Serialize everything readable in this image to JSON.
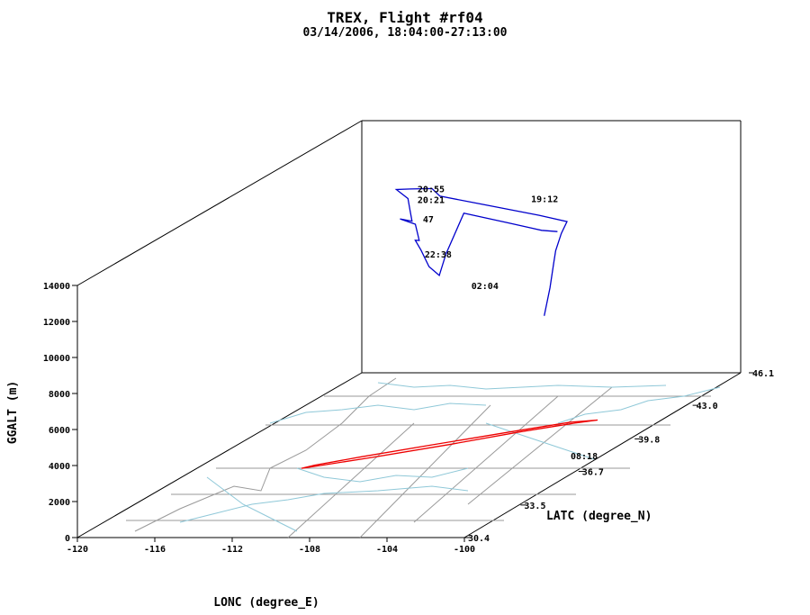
{
  "chart_data": {
    "type": "line",
    "title": "TREX, Flight #rf04",
    "subtitle": "03/14/2006, 18:04:00-27:13:00",
    "xlabel": "LONC (degree_E)",
    "ylabel": "LATC (degree_N)",
    "zlabel": "GGALT (m)",
    "xlim": [
      -120,
      -100
    ],
    "ylim": [
      30.4,
      46.1
    ],
    "zlim": [
      0,
      14000
    ],
    "x_ticks": [
      -120,
      -116,
      -112,
      -108,
      -104,
      -100
    ],
    "y_ticks": [
      30.4,
      33.5,
      36.7,
      39.8,
      43.0,
      46.1
    ],
    "z_ticks": [
      0,
      2000,
      4000,
      6000,
      8000,
      10000,
      12000,
      14000
    ],
    "series": [
      {
        "color": "#0000cc",
        "points": [
          [
            -102.8,
            37.8,
            8000
          ],
          [
            -102.6,
            37.9,
            9500
          ],
          [
            -102.5,
            38.0,
            10800
          ],
          [
            -102.4,
            38.0,
            11500
          ],
          [
            -102.2,
            38.1,
            12400
          ],
          [
            -102.0,
            38.2,
            13000
          ],
          [
            -104.0,
            38.8,
            13000
          ],
          [
            -108.0,
            40.0,
            12900
          ],
          [
            -111.0,
            40.8,
            12900
          ],
          [
            -111.6,
            41.0,
            13200
          ],
          [
            -113.0,
            41.3,
            13000
          ],
          [
            -114.0,
            41.6,
            12800
          ],
          [
            -113.4,
            41.6,
            12300
          ],
          [
            -113.2,
            41.5,
            11700
          ],
          [
            -113.1,
            41.5,
            11100
          ],
          [
            -114.0,
            41.8,
            11050
          ],
          [
            -113.3,
            41.9,
            10700
          ],
          [
            -113.1,
            41.9,
            9800
          ],
          [
            -113.4,
            42.0,
            9750
          ],
          [
            -113.1,
            42.0,
            9200
          ],
          [
            -112.5,
            41.8,
            8400
          ],
          [
            -111.5,
            41.3,
            8200
          ],
          [
            -110.5,
            40.6,
            9800
          ],
          [
            -109.2,
            40.2,
            12300
          ],
          [
            -106.0,
            39.2,
            12350
          ],
          [
            -103.5,
            38.4,
            12400
          ],
          [
            -102.4,
            38.1,
            12500
          ]
        ]
      },
      {
        "color": "#ee0000",
        "points": [
          [
            -114.6,
            37.0,
            0
          ],
          [
            -113.8,
            37.3,
            0
          ],
          [
            -112.0,
            38.0,
            0
          ],
          [
            -109.0,
            39.3,
            0
          ],
          [
            -106.5,
            40.5,
            0
          ],
          [
            -104.5,
            41.3,
            0
          ],
          [
            -103.6,
            41.6,
            0
          ],
          [
            -104.8,
            41.4,
            0
          ],
          [
            -107.0,
            40.5,
            0
          ],
          [
            -110.0,
            39.2,
            0
          ],
          [
            -112.5,
            38.1,
            0
          ],
          [
            -114.2,
            37.3,
            0
          ],
          [
            -114.6,
            37.0,
            0
          ]
        ]
      }
    ],
    "annotations": [
      {
        "text": "19:12",
        "lon": -106.1,
        "lat": 40.4,
        "alt": 13000
      },
      {
        "text": "02:04",
        "lon": -109.0,
        "lat": 40.2,
        "alt": 8300
      },
      {
        "text": "20:55",
        "lon": -113.0,
        "lat": 41.5,
        "alt": 12900
      },
      {
        "text": "20:21",
        "lon": -113.0,
        "lat": 41.5,
        "alt": 12300
      },
      {
        "text": "47",
        "lon": -113.1,
        "lat": 41.9,
        "alt": 11000
      },
      {
        "text": "22:38",
        "lon": -113.1,
        "lat": 42.0,
        "alt": 9000
      },
      {
        "text": "08:18",
        "lon": -102.0,
        "lat": 38.2,
        "alt": 0
      }
    ]
  }
}
